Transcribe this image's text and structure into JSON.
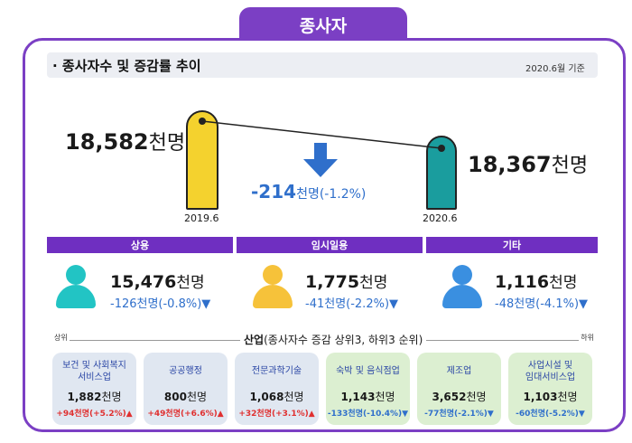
{
  "header": {
    "title": "종사자"
  },
  "section": {
    "title": "· 종사자수 및 증감률 추이",
    "date": "2020.6월 기준"
  },
  "totals": {
    "y2019_value": "18,582",
    "y2020_value": "18,367",
    "unit": "천명",
    "y2019_label": "2019.6",
    "y2020_label": "2020.6",
    "change_value": "-214",
    "change_unit": "천명(-1.2%)"
  },
  "categories": [
    {
      "label": "상용",
      "value": "15,476",
      "unit": "천명",
      "change": "-126천명(-0.8%)"
    },
    {
      "label": "임시일용",
      "value": "1,775",
      "unit": "천명",
      "change": "-41천명(-2.2%)"
    },
    {
      "label": "기타",
      "value": "1,116",
      "unit": "천명",
      "change": "-48천명(-4.1%)"
    }
  ],
  "industry": {
    "title_bold": "산업",
    "title_rest": "(종사자수 증감 상위3, 하위3 순위)",
    "top_label": "상위",
    "bottom_label": "하위",
    "cards": [
      {
        "name": "보건 및 사회복지\n서비스업",
        "value": "1,882",
        "unit": "천명",
        "change": "+94천명(+5.2%)"
      },
      {
        "name": "공공행정",
        "value": "800",
        "unit": "천명",
        "change": "+49천명(+6.6%)"
      },
      {
        "name": "전문과학기술",
        "value": "1,068",
        "unit": "천명",
        "change": "+32천명(+3.1%)"
      },
      {
        "name": "숙박 및 음식점업",
        "value": "1,143",
        "unit": "천명",
        "change": "-133천명(-10.4%)"
      },
      {
        "name": "제조업",
        "value": "3,652",
        "unit": "천명",
        "change": "-77천명(-2.1%)"
      },
      {
        "name": "사업시설 및\n임대서비스업",
        "value": "1,103",
        "unit": "천명",
        "change": "-60천명(-5.2%)"
      }
    ]
  },
  "colors": {
    "accent": "#7b3fc4",
    "bar": "#6f2fc1",
    "down": "#2f6fcb",
    "up": "#e03030",
    "yellow": "#f4d22e",
    "teal": "#1a9d9e"
  },
  "icons": [
    "person-icon",
    "down-arrow-icon",
    "up-arrow-icon"
  ]
}
